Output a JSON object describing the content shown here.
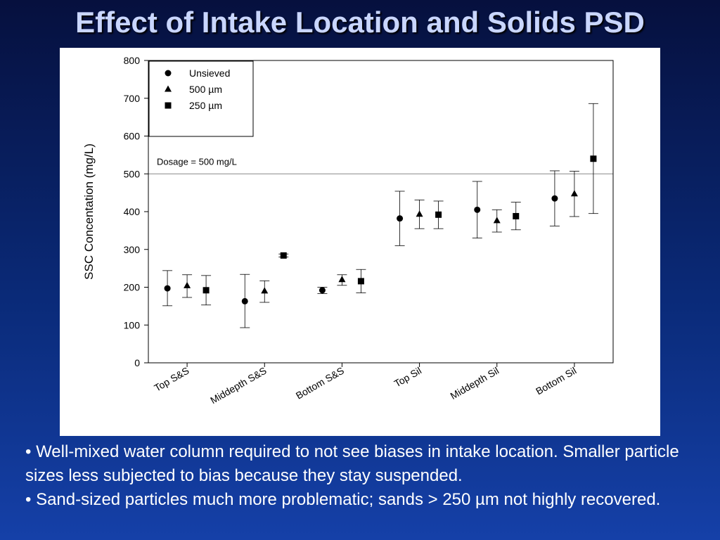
{
  "slide": {
    "title": "Effect of Intake Location and Solids PSD"
  },
  "bullets": [
    "• Well-mixed water column required to not see biases in intake location.  Smaller  particle sizes less subjected to bias because they stay suspended.",
    "• Sand-sized particles much more problematic;  sands > 250 µm not highly recovered."
  ],
  "chart_data": {
    "type": "scatter",
    "ylabel": "SSC Concentation (mg/L)",
    "xlabel": "",
    "ylim": [
      0,
      800
    ],
    "yticks": [
      0,
      100,
      200,
      300,
      400,
      500,
      600,
      700,
      800
    ],
    "categories": [
      "Top S&S",
      "Middepth S&S",
      "Bottom S&S",
      "Top Sil",
      "Middepth Sil",
      "Bottom Sil"
    ],
    "reference_line": {
      "value": 500,
      "label": "Dosage = 500 mg/L"
    },
    "legend_position": "top-left",
    "series": [
      {
        "name": "Unsieved",
        "marker": "circle",
        "values": [
          197,
          163,
          192,
          382,
          405,
          435
        ],
        "err_low": [
          151,
          93,
          183,
          310,
          330,
          362
        ],
        "err_high": [
          244,
          234,
          200,
          454,
          480,
          508
        ]
      },
      {
        "name": "500 µm",
        "marker": "triangle",
        "values": [
          204,
          190,
          220,
          393,
          376,
          447
        ],
        "err_low": [
          173,
          160,
          205,
          355,
          346,
          387
        ],
        "err_high": [
          233,
          217,
          233,
          431,
          405,
          507
        ]
      },
      {
        "name": "250 µm",
        "marker": "square",
        "values": [
          192,
          284,
          216,
          392,
          388,
          540
        ],
        "err_low": [
          153,
          280,
          185,
          355,
          352,
          395
        ],
        "err_high": [
          231,
          288,
          247,
          428,
          425,
          686
        ]
      }
    ]
  }
}
